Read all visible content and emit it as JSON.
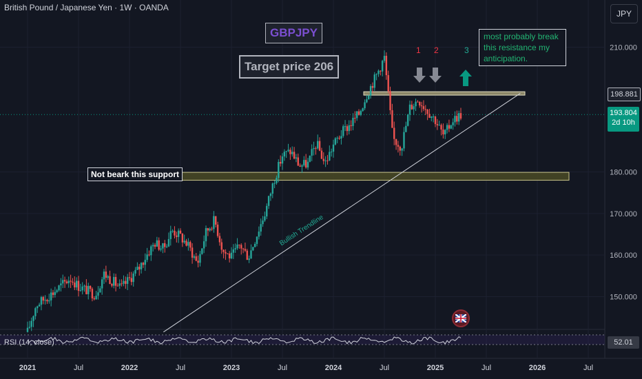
{
  "header": {
    "title": "British Pound / Japanese Yen · 1W · OANDA"
  },
  "currency_button": "JPY",
  "price_badges": {
    "resistance": "198.881",
    "current": "193.804",
    "countdown": "2d 10h"
  },
  "rsi": {
    "label": "RSI (14, close)",
    "value": "52.01"
  },
  "annotations": {
    "symbol": "GBPJPY",
    "target": "Target price 206",
    "support": "Not beark this support",
    "anticipation": "most probably break this resistance my anticipation.",
    "trendline": "Bullish Trendline",
    "markers": [
      "1",
      "2",
      "3"
    ]
  },
  "colors": {
    "background": "#131722",
    "up": "#26a69a",
    "down": "#ef5350",
    "symbol_text": "#7b4fd1",
    "target_text": "#b2b5be",
    "anticipation_text": "#22b573",
    "marker_red": "#f23645",
    "marker_green": "#22ab94",
    "arrow_down": "#868993",
    "arrow_up": "#089981"
  },
  "chart_data": {
    "type": "candlestick",
    "x_ticks": [
      "2021",
      "Jul",
      "2022",
      "Jul",
      "2023",
      "Jul",
      "2024",
      "Jul",
      "2025",
      "Jul",
      "2026",
      "Jul"
    ],
    "y_ticks": [
      "210.000",
      "180.000",
      "170.000",
      "160.000",
      "150.000"
    ],
    "ylim": [
      141.5,
      216
    ],
    "xlim": [
      "2021-01",
      "2026-12"
    ],
    "last_price": 193.804,
    "resistance_level": 198.881,
    "support_zone": [
      178.0,
      179.9
    ],
    "trendline": {
      "start": [
        "2022-05",
        141.5
      ],
      "end": [
        "2025-11",
        198.9
      ]
    },
    "weekly_close_path": [
      [
        "2021-01",
        141.5
      ],
      [
        "2021-02",
        148.0
      ],
      [
        "2021-04",
        151.0
      ],
      [
        "2021-06",
        154.5
      ],
      [
        "2021-07",
        152.5
      ],
      [
        "2021-09",
        150.5
      ],
      [
        "2021-10",
        155.5
      ],
      [
        "2021-12",
        152.0
      ],
      [
        "2022-02",
        156.5
      ],
      [
        "2022-03",
        160.0
      ],
      [
        "2022-04",
        163.0
      ],
      [
        "2022-05",
        161.5
      ],
      [
        "2022-06",
        166.0
      ],
      [
        "2022-07",
        164.5
      ],
      [
        "2022-08",
        162.0
      ],
      [
        "2022-09",
        158.0
      ],
      [
        "2022-10",
        165.5
      ],
      [
        "2022-11",
        168.5
      ],
      [
        "2022-12",
        161.0
      ],
      [
        "2023-01",
        159.5
      ],
      [
        "2023-02",
        162.5
      ],
      [
        "2023-03",
        159.5
      ],
      [
        "2023-04",
        165.0
      ],
      [
        "2023-05",
        170.5
      ],
      [
        "2023-06",
        178.0
      ],
      [
        "2023-07",
        184.0
      ],
      [
        "2023-08",
        185.0
      ],
      [
        "2023-09",
        181.5
      ],
      [
        "2023-10",
        182.0
      ],
      [
        "2023-11",
        187.0
      ],
      [
        "2023-12",
        182.0
      ],
      [
        "2024-01",
        186.5
      ],
      [
        "2024-02",
        189.5
      ],
      [
        "2024-03",
        191.5
      ],
      [
        "2024-04",
        194.0
      ],
      [
        "2024-05",
        199.0
      ],
      [
        "2024-06",
        203.0
      ],
      [
        "2024-07",
        207.5
      ],
      [
        "2024-08",
        188.0
      ],
      [
        "2024-09",
        186.0
      ],
      [
        "2024-10",
        195.5
      ],
      [
        "2024-11",
        197.5
      ],
      [
        "2024-12",
        195.0
      ],
      [
        "2025-01",
        192.5
      ],
      [
        "2025-02",
        188.5
      ],
      [
        "2025-03",
        192.5
      ],
      [
        "2025-04",
        193.8
      ]
    ]
  }
}
